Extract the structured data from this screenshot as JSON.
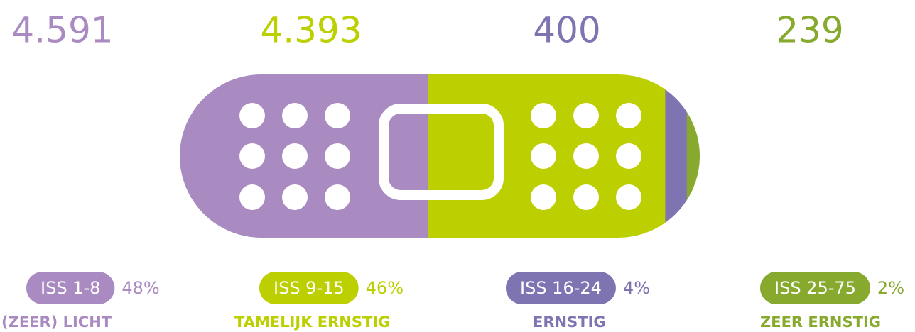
{
  "chart_data": {
    "type": "bar",
    "series": [
      {
        "name": "(ZEER) LICHT",
        "range": "ISS 1-8",
        "color": "#a98bc2",
        "values": [
          4591
        ],
        "value_labels": [
          "4.591"
        ],
        "share": 48,
        "share_label": "48%"
      },
      {
        "name": "TAMELIJK ERNSTIG",
        "range": "ISS 9-15",
        "color": "#bccf00",
        "values": [
          4393
        ],
        "value_labels": [
          "4.393"
        ],
        "share": 46,
        "share_label": "46%"
      },
      {
        "name": "ERNSTIG",
        "range": "ISS 16-24",
        "color": "#7f74b2",
        "values": [
          400
        ],
        "value_labels": [
          "400"
        ],
        "share": 4,
        "share_label": "4%"
      },
      {
        "name": "ZEER ERNSTIG",
        "range": "ISS 25-75",
        "color": "#86a92e",
        "values": [
          239
        ],
        "value_labels": [
          "239"
        ],
        "share": 2,
        "share_label": "2%"
      }
    ]
  }
}
